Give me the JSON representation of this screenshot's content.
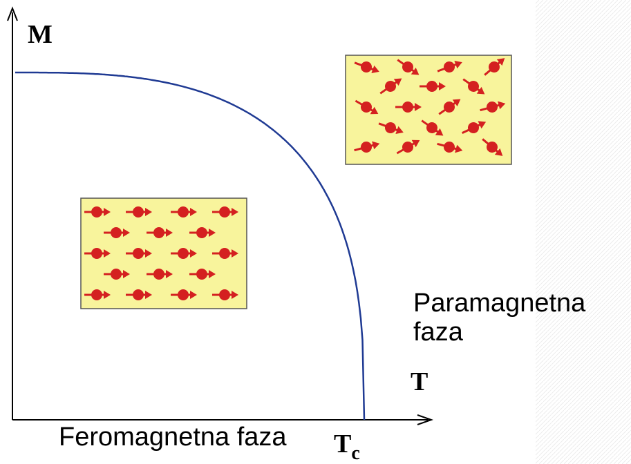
{
  "axis_labels": {
    "y": "M",
    "x": "T",
    "critical": "T",
    "critical_sub": "c"
  },
  "labels": {
    "para": "Paramagnetna faza",
    "ferro": "Feromagnetna faza"
  }
}
